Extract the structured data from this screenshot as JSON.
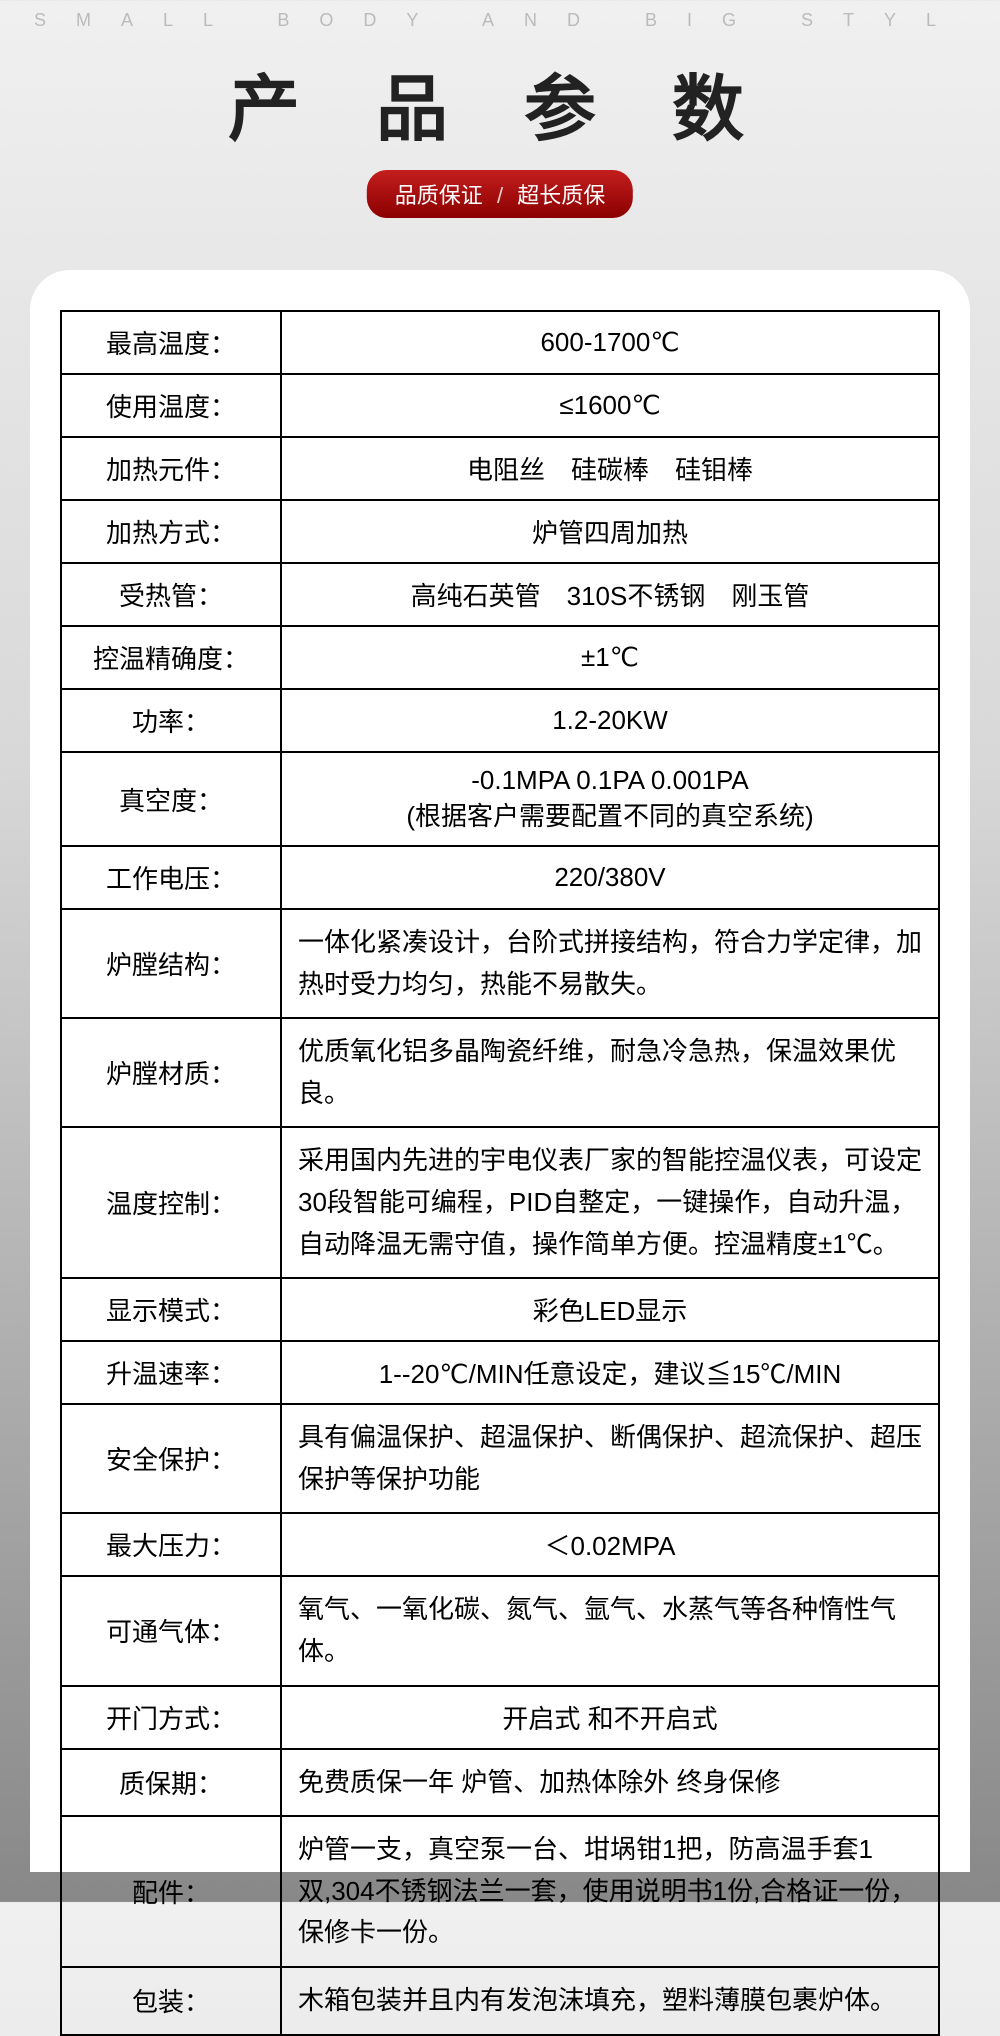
{
  "top_text": "SMALL BODY AND BIG STYL",
  "title": "产 品 参 数",
  "badge_left": "品质保证",
  "badge_sep": "/",
  "badge_right": "超长质保",
  "rows": [
    {
      "label": "最高温度：",
      "value": "600-1700℃",
      "align": "center"
    },
    {
      "label": "使用温度：",
      "value": "≤1600℃",
      "align": "center"
    },
    {
      "label": "加热元件：",
      "value": "电阻丝　硅碳棒　硅钼棒",
      "align": "center"
    },
    {
      "label": "加热方式：",
      "value": "炉管四周加热",
      "align": "center"
    },
    {
      "label": "受热管：",
      "value": "高纯石英管　310S不锈钢　刚玉管",
      "align": "center"
    },
    {
      "label": "控温精确度：",
      "value": "±1℃",
      "align": "center"
    },
    {
      "label": "功率：",
      "value": "1.2-20KW",
      "align": "center"
    },
    {
      "label": "真空度：",
      "value": "-0.1MPA 0.1PA 0.001PA\n(根据客户需要配置不同的真空系统)",
      "align": "center"
    },
    {
      "label": "工作电压：",
      "value": "220/380V",
      "align": "center"
    },
    {
      "label": "炉膛结构：",
      "value": "一体化紧凑设计，台阶式拼接结构，符合力学定律，加热时受力均匀，热能不易散失。",
      "align": "left"
    },
    {
      "label": "炉膛材质：",
      "value": "优质氧化铝多晶陶瓷纤维，耐急冷急热，保温效果优良。",
      "align": "left"
    },
    {
      "label": "温度控制：",
      "value": "采用国内先进的宇电仪表厂家的智能控温仪表，可设定30段智能可编程，PID自整定，一键操作，自动升温，自动降温无需守值，操作简单方便。控温精度±1℃。",
      "align": "left"
    },
    {
      "label": "显示模式：",
      "value": "彩色LED显示",
      "align": "center"
    },
    {
      "label": "升温速率：",
      "value": "1--20℃/MIN任意设定，建议≦15℃/MIN",
      "align": "center"
    },
    {
      "label": "安全保护：",
      "value": "具有偏温保护、超温保护、断偶保护、超流保护、超压保护等保护功能",
      "align": "left"
    },
    {
      "label": "最大压力：",
      "value": "＜0.02MPA",
      "align": "center"
    },
    {
      "label": "可通气体：",
      "value": "氧气、一氧化碳、氮气、氩气、水蒸气等各种惰性气体。",
      "align": "left"
    },
    {
      "label": "开门方式：",
      "value": "开启式 和不开启式",
      "align": "center"
    },
    {
      "label": "质保期：",
      "value": "免费质保一年 炉管、加热体除外 终身保修",
      "align": "left"
    },
    {
      "label": "配件：",
      "value": "炉管一支，真空泵一台、坩埚钳1把，防高温手套1双,304不锈钢法兰一套，使用说明书1份,合格证一份，保修卡一份。",
      "align": "left"
    },
    {
      "label": "包装：",
      "value": "木箱包装并且内有发泡沫填充，塑料薄膜包裹炉体。",
      "align": "left"
    }
  ]
}
